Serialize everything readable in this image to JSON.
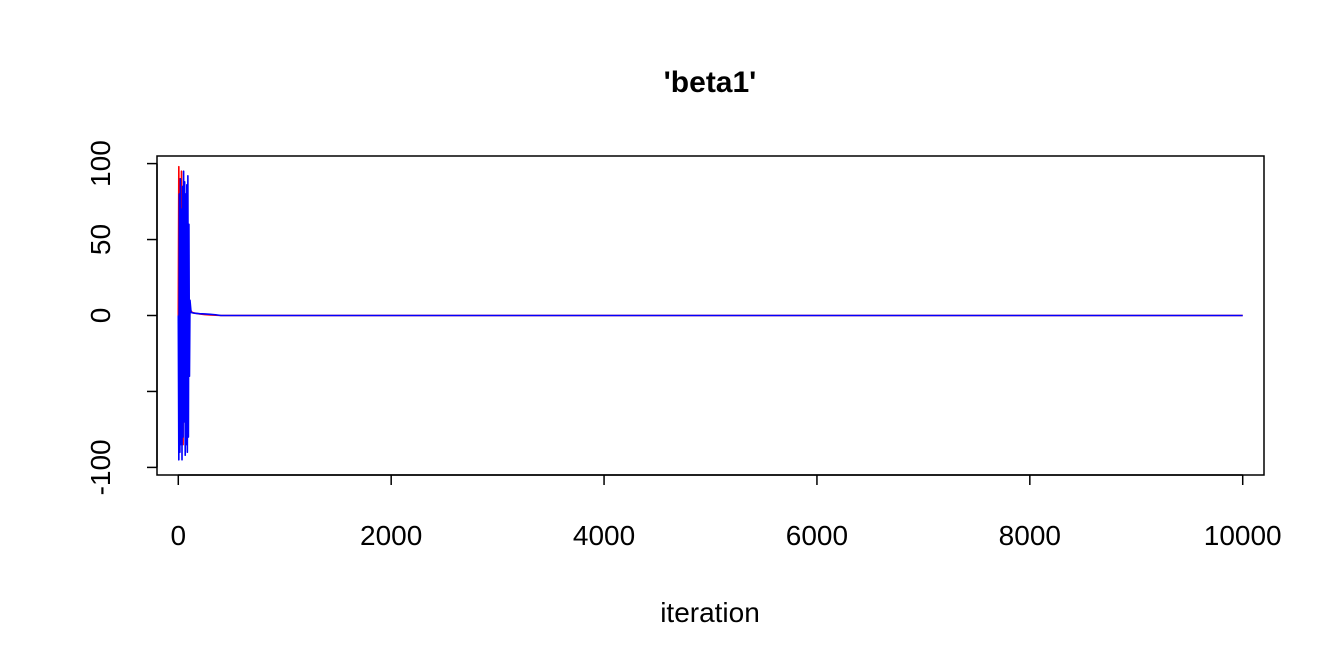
{
  "chart_data": {
    "type": "line",
    "title": "'beta1'",
    "xlabel": "iteration",
    "ylabel": "",
    "xlim": [
      -200,
      10200
    ],
    "ylim": [
      -105,
      105
    ],
    "x_ticks": [
      0,
      2000,
      4000,
      6000,
      8000,
      10000
    ],
    "x_tick_labels": [
      "0",
      "2000",
      "4000",
      "6000",
      "8000",
      "10000"
    ],
    "y_ticks": [
      -100,
      -50,
      0,
      50,
      100
    ],
    "y_tick_labels": [
      "-100",
      "",
      "0",
      "50",
      "100"
    ],
    "grid": false,
    "legend": "none",
    "series": [
      {
        "color": "#ff0000",
        "points": [
          [
            0,
            0
          ],
          [
            5,
            98
          ],
          [
            10,
            -75
          ],
          [
            15,
            90
          ],
          [
            20,
            60
          ],
          [
            25,
            -80
          ],
          [
            30,
            95
          ],
          [
            35,
            -60
          ],
          [
            40,
            70
          ],
          [
            45,
            -85
          ],
          [
            50,
            40
          ],
          [
            55,
            -70
          ],
          [
            60,
            85
          ],
          [
            65,
            -50
          ],
          [
            70,
            55
          ],
          [
            80,
            -30
          ],
          [
            90,
            20
          ],
          [
            100,
            -10
          ],
          [
            110,
            4
          ],
          [
            130,
            2
          ],
          [
            160,
            1.5
          ],
          [
            200,
            1
          ],
          [
            250,
            0.6
          ],
          [
            300,
            0.4
          ],
          [
            350,
            0.2
          ],
          [
            400,
            0
          ],
          [
            10000,
            0
          ]
        ]
      },
      {
        "color": "#0000ff",
        "points": [
          [
            0,
            0
          ],
          [
            5,
            -95
          ],
          [
            10,
            80
          ],
          [
            15,
            -90
          ],
          [
            20,
            90
          ],
          [
            25,
            -85
          ],
          [
            30,
            70
          ],
          [
            35,
            -95
          ],
          [
            40,
            85
          ],
          [
            45,
            -80
          ],
          [
            50,
            95
          ],
          [
            55,
            -70
          ],
          [
            60,
            88
          ],
          [
            65,
            -92
          ],
          [
            70,
            80
          ],
          [
            75,
            -85
          ],
          [
            80,
            86
          ],
          [
            85,
            -90
          ],
          [
            90,
            92
          ],
          [
            95,
            -80
          ],
          [
            100,
            60
          ],
          [
            105,
            -40
          ],
          [
            110,
            10
          ],
          [
            120,
            2
          ],
          [
            150,
            1.5
          ],
          [
            200,
            1.2
          ],
          [
            250,
            1
          ],
          [
            300,
            0.8
          ],
          [
            350,
            0.5
          ],
          [
            400,
            0
          ],
          [
            10000,
            0
          ]
        ]
      }
    ]
  }
}
